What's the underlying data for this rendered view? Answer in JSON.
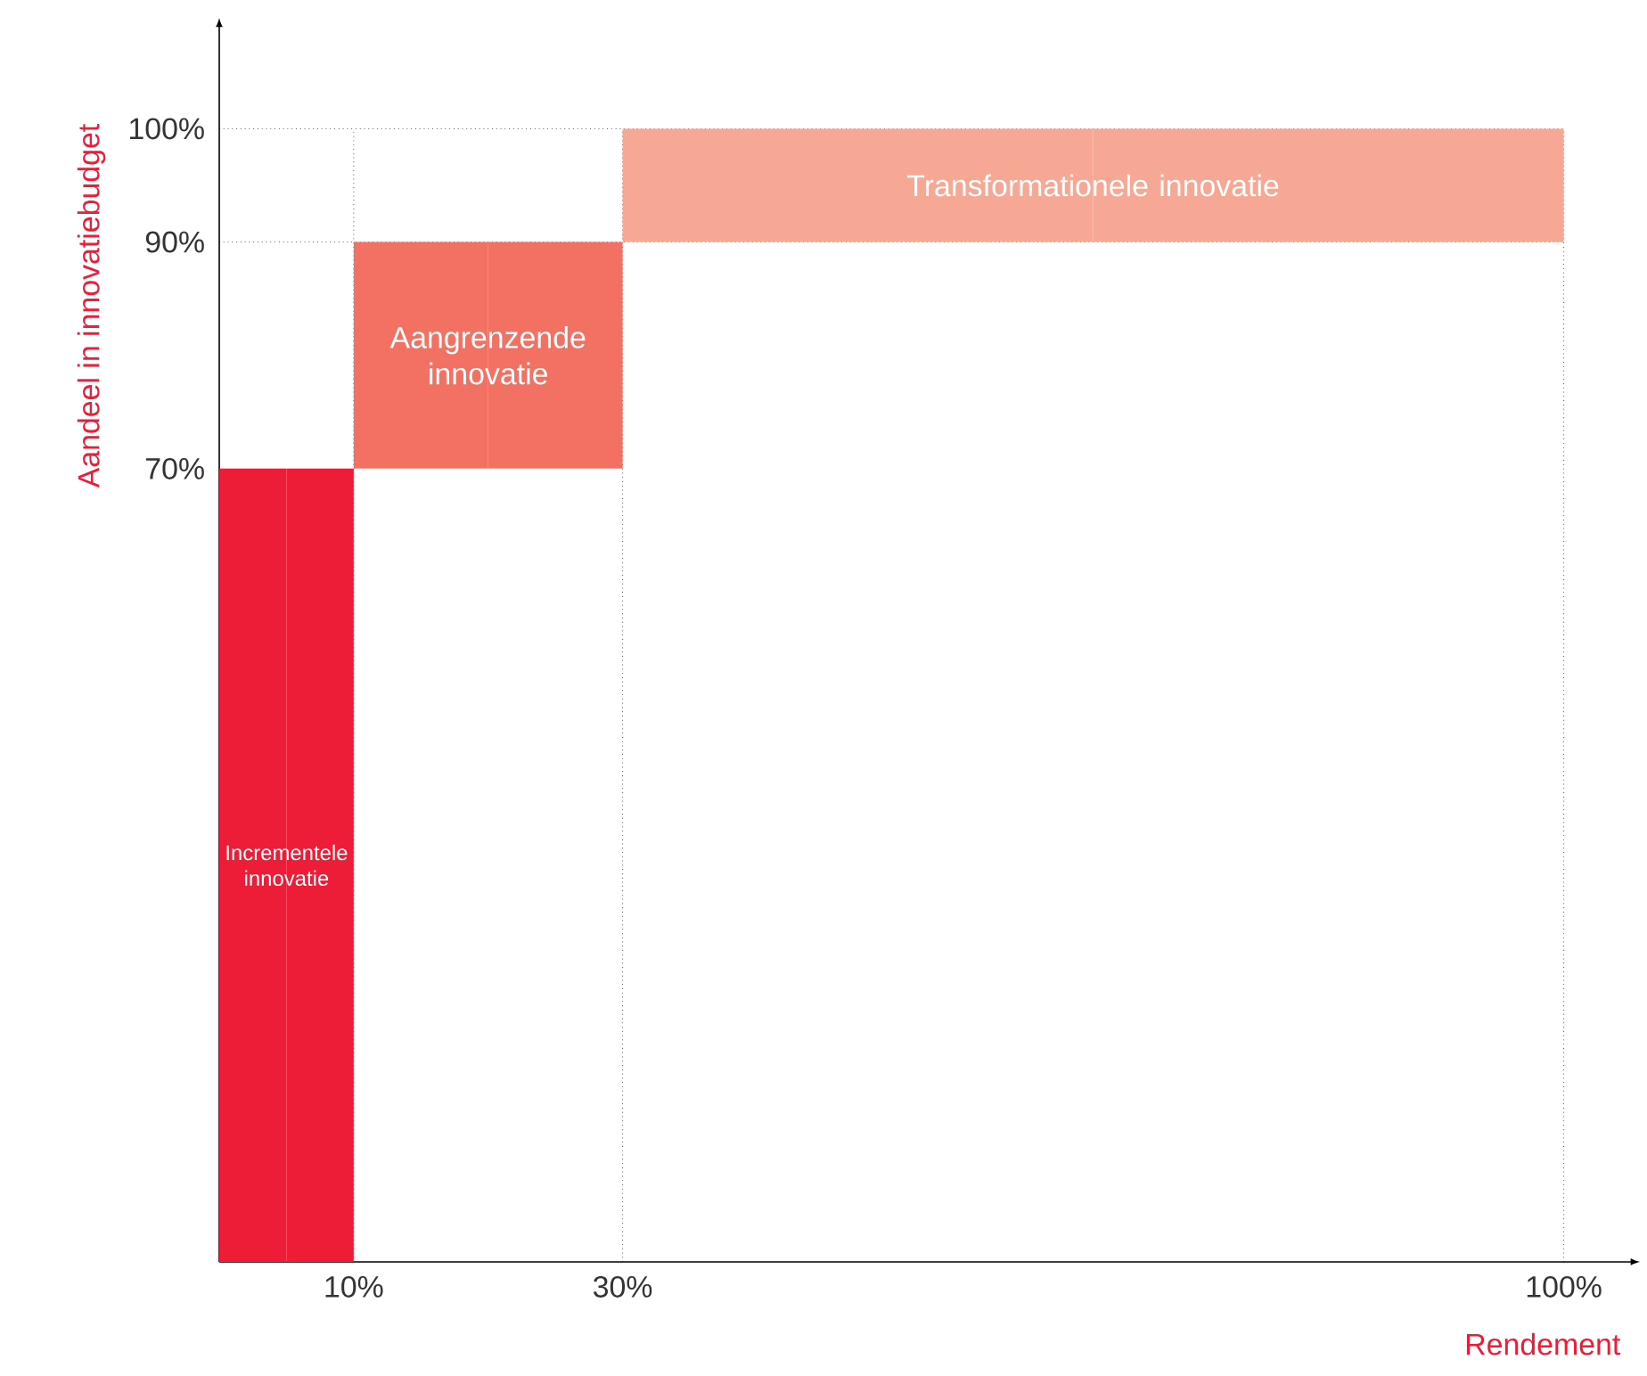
{
  "chart_data": {
    "type": "bar",
    "xlabel": "Rendement",
    "ylabel": "Aandeel in innovatiebudget",
    "xlim": [
      0,
      105
    ],
    "ylim": [
      0,
      109
    ],
    "xticks": [
      {
        "value": 10,
        "label": "10%"
      },
      {
        "value": 30,
        "label": "30%"
      },
      {
        "value": 100,
        "label": "100%"
      }
    ],
    "yticks": [
      {
        "value": 70,
        "label": "70%"
      },
      {
        "value": 90,
        "label": "90%"
      },
      {
        "value": 100,
        "label": "100%"
      }
    ],
    "series": [
      {
        "name": "Incrementele innovatie",
        "color": "#ed1c37",
        "x": [
          0,
          10
        ],
        "base": [
          0,
          0
        ],
        "values": [
          70,
          70
        ]
      },
      {
        "name": "Aangrenzende innovatie",
        "color": "#f37163",
        "x": [
          10,
          30
        ],
        "base": [
          70,
          70
        ],
        "values": [
          20,
          20
        ]
      },
      {
        "name": "Transformationele innovatie",
        "color": "#f7a895",
        "x": [
          30,
          100
        ],
        "base": [
          90,
          90
        ],
        "values": [
          10,
          10
        ]
      }
    ],
    "ref_lines": [
      {
        "axis": "y",
        "value": 90,
        "line_style": "dotted"
      },
      {
        "axis": "y",
        "value": 100,
        "line_style": "dotted"
      },
      {
        "axis": "x",
        "value": 10,
        "line_style": "dotted"
      },
      {
        "axis": "x",
        "value": 30,
        "line_style": "dotted"
      },
      {
        "axis": "x",
        "value": 100,
        "line_style": "dotted"
      }
    ]
  }
}
